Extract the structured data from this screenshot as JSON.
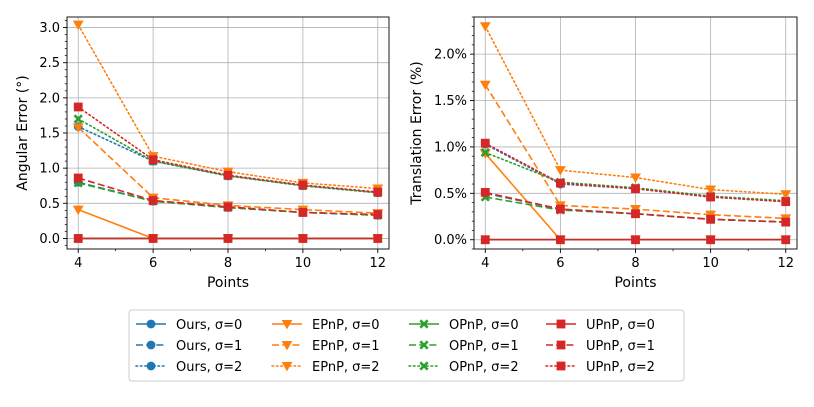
{
  "chart_data": [
    {
      "type": "line",
      "xlabel": "Points",
      "ylabel": "Angular Error (°)",
      "xlim": [
        3.7,
        12.3
      ],
      "ylim": [
        -0.15,
        3.15
      ],
      "xticks": [
        4,
        6,
        8,
        10,
        12
      ],
      "xtick_labels": [
        "4",
        "6",
        "8",
        "10",
        "12"
      ],
      "yticks": [
        0,
        0.5,
        1,
        1.5,
        2,
        2.5,
        3
      ],
      "ytick_labels": [
        "0.0",
        "0.5",
        "1.0",
        "1.5",
        "2.0",
        "2.5",
        "3.0"
      ],
      "grid": true,
      "x": [
        4,
        6,
        8,
        10,
        12
      ],
      "series": [
        {
          "name": "Ours, σ=0",
          "values": [
            0,
            0,
            0,
            0,
            0
          ]
        },
        {
          "name": "Ours, σ=1",
          "values": [
            0.8,
            0.53,
            0.44,
            0.37,
            0.33
          ]
        },
        {
          "name": "Ours, σ=2",
          "values": [
            1.59,
            1.1,
            0.89,
            0.75,
            0.65
          ]
        },
        {
          "name": "EPnP, σ=0",
          "values": [
            0.41,
            0,
            0,
            0,
            0
          ]
        },
        {
          "name": "EPnP, σ=1",
          "values": [
            1.58,
            0.58,
            0.47,
            0.41,
            0.36
          ]
        },
        {
          "name": "EPnP, σ=2",
          "values": [
            3.04,
            1.17,
            0.95,
            0.79,
            0.71
          ]
        },
        {
          "name": "OPnP, σ=0",
          "values": [
            0,
            0,
            0,
            0,
            0
          ]
        },
        {
          "name": "OPnP, σ=1",
          "values": [
            0.79,
            0.53,
            0.44,
            0.37,
            0.33
          ]
        },
        {
          "name": "OPnP, σ=2",
          "values": [
            1.7,
            1.1,
            0.89,
            0.75,
            0.65
          ]
        },
        {
          "name": "UPnP, σ=0",
          "values": [
            0,
            0,
            0,
            0,
            0
          ]
        },
        {
          "name": "UPnP, σ=1",
          "values": [
            0.86,
            0.54,
            0.45,
            0.37,
            0.34
          ]
        },
        {
          "name": "UPnP, σ=2",
          "values": [
            1.87,
            1.12,
            0.9,
            0.76,
            0.66
          ]
        }
      ]
    },
    {
      "type": "line",
      "xlabel": "Points",
      "ylabel": "Translation Error (%)",
      "xlim": [
        3.7,
        12.3
      ],
      "ylim": [
        -0.1,
        2.4
      ],
      "xticks": [
        4,
        6,
        8,
        10,
        12
      ],
      "xtick_labels": [
        "4",
        "6",
        "8",
        "10",
        "12"
      ],
      "yticks": [
        0,
        0.5,
        1,
        1.5,
        2
      ],
      "ytick_labels": [
        "0.0%",
        "0.5%",
        "1.0%",
        "1.5%",
        "2.0%"
      ],
      "grid": true,
      "x": [
        4,
        6,
        8,
        10,
        12
      ],
      "series": [
        {
          "name": "Ours, σ=0",
          "values": [
            0,
            0,
            0,
            0,
            0
          ]
        },
        {
          "name": "Ours, σ=1",
          "values": [
            0.5,
            0.33,
            0.28,
            0.22,
            0.19
          ]
        },
        {
          "name": "Ours, σ=2",
          "values": [
            1.03,
            0.6,
            0.55,
            0.46,
            0.41
          ]
        },
        {
          "name": "EPnP, σ=0",
          "values": [
            0.93,
            0,
            0,
            0,
            0
          ]
        },
        {
          "name": "EPnP, σ=1",
          "values": [
            1.67,
            0.37,
            0.33,
            0.27,
            0.23
          ]
        },
        {
          "name": "EPnP, σ=2",
          "values": [
            2.3,
            0.75,
            0.67,
            0.54,
            0.49
          ]
        },
        {
          "name": "OPnP, σ=0",
          "values": [
            0,
            0,
            0,
            0,
            0
          ]
        },
        {
          "name": "OPnP, σ=1",
          "values": [
            0.46,
            0.32,
            0.28,
            0.22,
            0.19
          ]
        },
        {
          "name": "OPnP, σ=2",
          "values": [
            0.94,
            0.62,
            0.56,
            0.47,
            0.42
          ]
        },
        {
          "name": "UPnP, σ=0",
          "values": [
            0,
            0,
            0,
            0,
            0
          ]
        },
        {
          "name": "UPnP, σ=1",
          "values": [
            0.51,
            0.33,
            0.28,
            0.22,
            0.19
          ]
        },
        {
          "name": "UPnP, σ=2",
          "values": [
            1.04,
            0.61,
            0.55,
            0.46,
            0.41
          ]
        }
      ]
    }
  ],
  "legend": {
    "placement": "bottom-center",
    "entries": [
      [
        "Ours, σ=0",
        "EPnP, σ=0",
        "OPnP, σ=0",
        "UPnP, σ=0"
      ],
      [
        "Ours, σ=1",
        "EPnP, σ=1",
        "OPnP, σ=1",
        "UPnP, σ=1"
      ],
      [
        "Ours, σ=2",
        "EPnP, σ=2",
        "OPnP, σ=2",
        "UPnP, σ=2"
      ]
    ]
  },
  "methods": [
    {
      "name": "Ours",
      "color": "#1f77b4",
      "marker": "circle"
    },
    {
      "name": "EPnP",
      "color": "#ff7f0e",
      "marker": "triangle-down"
    },
    {
      "name": "OPnP",
      "color": "#2ca02c",
      "marker": "x-filled"
    },
    {
      "name": "UPnP",
      "color": "#d62728",
      "marker": "square"
    }
  ],
  "line_styles": [
    "solid",
    "dashed",
    "dotted"
  ]
}
